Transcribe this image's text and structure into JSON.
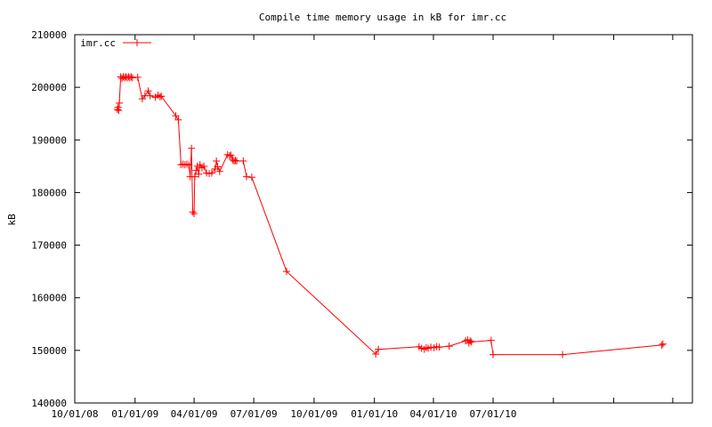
{
  "chart_data": {
    "type": "line",
    "title": "Compile time memory usage in kB for imr.cc",
    "xlabel": "",
    "ylabel": "kB",
    "ylim": [
      140000,
      210000
    ],
    "xlim": [
      "2008-10-01",
      "2011-05-01"
    ],
    "yticks": [
      140000,
      150000,
      160000,
      170000,
      180000,
      190000,
      200000,
      210000
    ],
    "xticks": [
      "10/01/08",
      "01/01/09",
      "04/01/09",
      "07/01/09",
      "10/01/09",
      "01/01/10",
      "04/01/10",
      "07/01/10"
    ],
    "grid": false,
    "legend_position": "top-left",
    "color": "#ff0000",
    "series": [
      {
        "name": "imr.cc",
        "points": [
          [
            "2008-12-05",
            195800
          ],
          [
            "2008-12-06",
            196200
          ],
          [
            "2008-12-07",
            195600
          ],
          [
            "2008-12-08",
            197000
          ],
          [
            "2008-12-10",
            202000
          ],
          [
            "2008-12-12",
            201700
          ],
          [
            "2008-12-14",
            202000
          ],
          [
            "2008-12-16",
            201800
          ],
          [
            "2008-12-18",
            202000
          ],
          [
            "2008-12-20",
            201800
          ],
          [
            "2008-12-22",
            202000
          ],
          [
            "2008-12-24",
            201800
          ],
          [
            "2008-12-26",
            202000
          ],
          [
            "2008-12-28",
            201800
          ],
          [
            "2009-01-05",
            201900
          ],
          [
            "2009-01-12",
            197800
          ],
          [
            "2009-01-16",
            198400
          ],
          [
            "2009-01-21",
            199300
          ],
          [
            "2009-01-24",
            198400
          ],
          [
            "2009-02-01",
            198100
          ],
          [
            "2009-02-05",
            198500
          ],
          [
            "2009-02-08",
            198200
          ],
          [
            "2009-02-10",
            198300
          ],
          [
            "2009-03-04",
            194600
          ],
          [
            "2009-03-08",
            193800
          ],
          [
            "2009-03-12",
            185300
          ],
          [
            "2009-03-15",
            185400
          ],
          [
            "2009-03-18",
            185300
          ],
          [
            "2009-03-21",
            185400
          ],
          [
            "2009-03-24",
            185200
          ],
          [
            "2009-03-26",
            183000
          ],
          [
            "2009-03-28",
            188400
          ],
          [
            "2009-03-30",
            176300
          ],
          [
            "2009-04-01",
            176000
          ],
          [
            "2009-04-02",
            183000
          ],
          [
            "2009-04-04",
            184200
          ],
          [
            "2009-04-06",
            185000
          ],
          [
            "2009-04-08",
            183500
          ],
          [
            "2009-04-10",
            185300
          ],
          [
            "2009-04-13",
            184700
          ],
          [
            "2009-04-16",
            185000
          ],
          [
            "2009-04-20",
            183700
          ],
          [
            "2009-04-24",
            183600
          ],
          [
            "2009-04-28",
            183700
          ],
          [
            "2009-05-03",
            184500
          ],
          [
            "2009-05-05",
            186000
          ],
          [
            "2009-05-07",
            184900
          ],
          [
            "2009-05-10",
            184000
          ],
          [
            "2009-05-22",
            187200
          ],
          [
            "2009-05-25",
            187000
          ],
          [
            "2009-05-27",
            187100
          ],
          [
            "2009-05-30",
            186200
          ],
          [
            "2009-06-01",
            186000
          ],
          [
            "2009-06-03",
            186100
          ],
          [
            "2009-06-05",
            186000
          ],
          [
            "2009-06-15",
            186000
          ],
          [
            "2009-06-20",
            183000
          ],
          [
            "2009-06-28",
            182900
          ],
          [
            "2009-08-20",
            165000
          ],
          [
            "2010-01-03",
            149300
          ],
          [
            "2010-01-07",
            150200
          ],
          [
            "2010-03-10",
            150700
          ],
          [
            "2010-03-14",
            150400
          ],
          [
            "2010-03-18",
            150200
          ],
          [
            "2010-03-21",
            150500
          ],
          [
            "2010-03-24",
            150400
          ],
          [
            "2010-03-28",
            150600
          ],
          [
            "2010-04-02",
            150500
          ],
          [
            "2010-04-06",
            150700
          ],
          [
            "2010-04-10",
            150600
          ],
          [
            "2010-04-25",
            150800
          ],
          [
            "2010-05-20",
            151800
          ],
          [
            "2010-05-23",
            152000
          ],
          [
            "2010-05-25",
            151400
          ],
          [
            "2010-05-27",
            151800
          ],
          [
            "2010-05-29",
            151600
          ],
          [
            "2010-06-28",
            151900
          ],
          [
            "2010-07-01",
            149200
          ],
          [
            "2010-10-15",
            149200
          ],
          [
            "2011-03-15",
            151000
          ],
          [
            "2011-03-17",
            151200
          ]
        ]
      }
    ]
  }
}
